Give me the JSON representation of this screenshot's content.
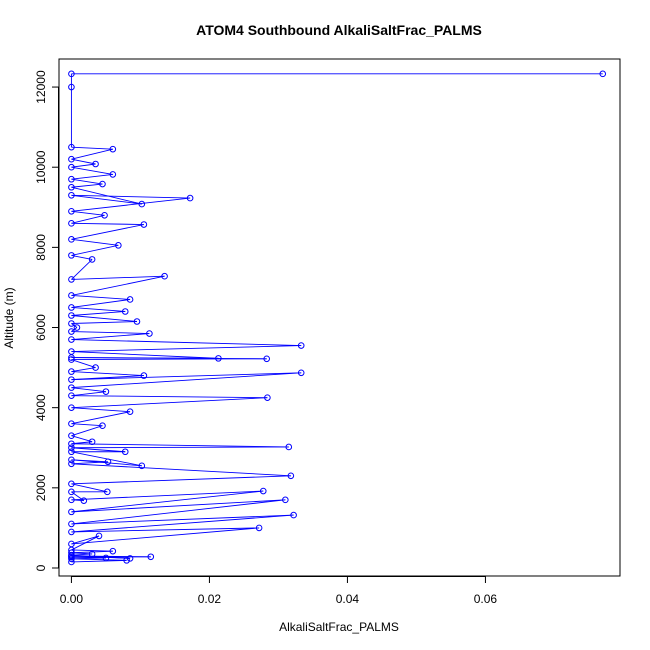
{
  "chart_data": {
    "type": "line",
    "title": "ATOM4 Southbound AlkaliSaltFrac_PALMS",
    "xlabel": "AlkaliSaltFrac_PALMS",
    "ylabel": "Altitude (m)",
    "xlim": [
      -0.0018,
      0.0795
    ],
    "ylim": [
      -200,
      12700
    ],
    "x_ticks": [
      0,
      0.02,
      0.04,
      0.06
    ],
    "x_tick_labels": [
      "0.00",
      "0.02",
      "0.04",
      "0.06"
    ],
    "y_ticks": [
      0,
      2000,
      4000,
      6000,
      8000,
      10000,
      12000
    ],
    "y_tick_labels": [
      "0",
      "2000",
      "4000",
      "6000",
      "8000",
      "10000",
      "12000"
    ],
    "grid": false,
    "legend": "none",
    "colors": {
      "series": "#0000ff",
      "axis": "#000000",
      "background": "#ffffff"
    },
    "markers": "open-circle",
    "series": [
      {
        "points": [
          [
            0,
            150
          ],
          [
            0.008,
            190
          ],
          [
            0,
            230
          ],
          [
            0.005,
            250
          ],
          [
            0,
            270
          ],
          [
            0.0115,
            280
          ],
          [
            0,
            300
          ],
          [
            0.0085,
            240
          ],
          [
            0,
            320
          ],
          [
            0.003,
            350
          ],
          [
            0,
            380
          ],
          [
            0.006,
            420
          ],
          [
            0,
            450
          ],
          [
            0.004,
            800
          ],
          [
            0,
            600
          ],
          [
            0.0272,
            1000
          ],
          [
            0,
            900
          ],
          [
            0.0322,
            1320
          ],
          [
            0,
            1100
          ],
          [
            0.031,
            1700
          ],
          [
            0,
            1400
          ],
          [
            0.0278,
            1920
          ],
          [
            0,
            1700
          ],
          [
            0.0018,
            1680
          ],
          [
            0,
            1900
          ],
          [
            0.0052,
            1900
          ],
          [
            0,
            2100
          ],
          [
            0.0318,
            2300
          ],
          [
            0,
            2600
          ],
          [
            0.0053,
            2650
          ],
          [
            0,
            2700
          ],
          [
            0.0102,
            2550
          ],
          [
            0,
            2900
          ],
          [
            0.0078,
            2900
          ],
          [
            0,
            3000
          ],
          [
            0.0315,
            3020
          ],
          [
            0,
            3100
          ],
          [
            0.003,
            3150
          ],
          [
            0,
            3300
          ],
          [
            0.0045,
            3550
          ],
          [
            0,
            3600
          ],
          [
            0.0085,
            3900
          ],
          [
            0,
            4000
          ],
          [
            0.0284,
            4250
          ],
          [
            0,
            4300
          ],
          [
            0.005,
            4400
          ],
          [
            0,
            4500
          ],
          [
            0.0333,
            4870
          ],
          [
            0,
            4700
          ],
          [
            0.0105,
            4800
          ],
          [
            0,
            4900
          ],
          [
            0.0035,
            5000
          ],
          [
            0,
            5200
          ],
          [
            0.0283,
            5220
          ],
          [
            0,
            5250
          ],
          [
            0.0213,
            5230
          ],
          [
            0,
            5400
          ],
          [
            0.0333,
            5550
          ],
          [
            0,
            5700
          ],
          [
            0.0113,
            5850
          ],
          [
            0,
            5900
          ],
          [
            0.0008,
            6000
          ],
          [
            0,
            6100
          ],
          [
            0.0095,
            6150
          ],
          [
            0,
            6300
          ],
          [
            0.0078,
            6400
          ],
          [
            0,
            6500
          ],
          [
            0.0085,
            6700
          ],
          [
            0,
            6800
          ],
          [
            0.0135,
            7280
          ],
          [
            0,
            7200
          ],
          [
            0.003,
            7700
          ],
          [
            0,
            7800
          ],
          [
            0.0068,
            8050
          ],
          [
            0,
            8200
          ],
          [
            0.0105,
            8570
          ],
          [
            0,
            8600
          ],
          [
            0.0048,
            8800
          ],
          [
            0,
            8900
          ],
          [
            0.0172,
            9230
          ],
          [
            0,
            9300
          ],
          [
            0.0102,
            9080
          ],
          [
            0,
            9500
          ],
          [
            0.0045,
            9580
          ],
          [
            0,
            9700
          ],
          [
            0.006,
            9820
          ],
          [
            0,
            10000
          ],
          [
            0.0035,
            10080
          ],
          [
            0,
            10200
          ],
          [
            0.006,
            10450
          ],
          [
            0,
            10500
          ],
          [
            0,
            12000
          ],
          [
            0,
            12330
          ],
          [
            0.077,
            12330
          ]
        ]
      }
    ]
  }
}
